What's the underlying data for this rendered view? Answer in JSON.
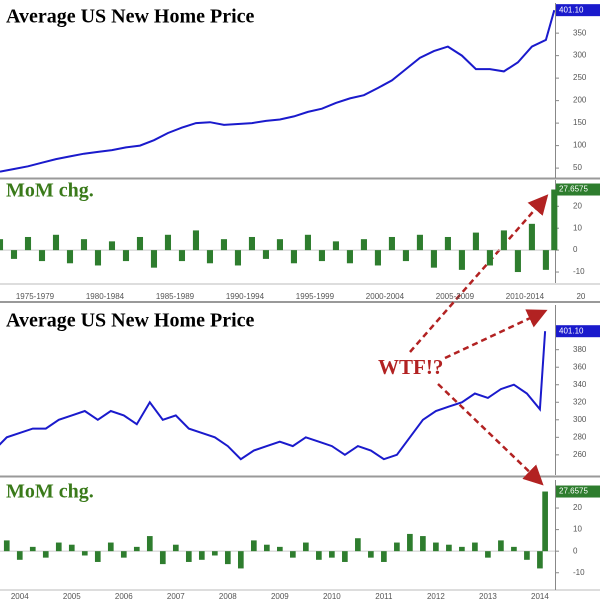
{
  "chart_data": [
    {
      "type": "line",
      "title": "Average US New Home Price",
      "color": "#1a1acc",
      "x": [
        1975,
        1976,
        1977,
        1978,
        1979,
        1980,
        1981,
        1982,
        1983,
        1984,
        1985,
        1986,
        1987,
        1988,
        1989,
        1990,
        1991,
        1992,
        1993,
        1994,
        1995,
        1996,
        1997,
        1998,
        1999,
        2000,
        2001,
        2002,
        2003,
        2004,
        2005,
        2006,
        2007,
        2008,
        2009,
        2010,
        2011,
        2012,
        2013,
        2014,
        2014.6
      ],
      "values": [
        42,
        48,
        54,
        62,
        70,
        76,
        82,
        86,
        90,
        96,
        100,
        112,
        128,
        140,
        150,
        152,
        146,
        148,
        150,
        155,
        158,
        165,
        175,
        182,
        195,
        205,
        212,
        228,
        245,
        270,
        295,
        310,
        320,
        300,
        270,
        270,
        265,
        285,
        320,
        335,
        401.1
      ],
      "last_value_label": "401.10",
      "xlim": [
        1975,
        2014.65
      ],
      "ylim": [
        28,
        417
      ],
      "yticks": [
        50,
        100,
        150,
        200,
        250,
        300,
        350
      ]
    },
    {
      "type": "bar",
      "title": "MoM chg.",
      "color": "#2e7d2e",
      "x": [
        1975,
        1976,
        1977,
        1978,
        1979,
        1980,
        1981,
        1982,
        1983,
        1984,
        1985,
        1986,
        1987,
        1988,
        1989,
        1990,
        1991,
        1992,
        1993,
        1994,
        1995,
        1996,
        1997,
        1998,
        1999,
        2000,
        2001,
        2002,
        2003,
        2004,
        2005,
        2006,
        2007,
        2008,
        2009,
        2010,
        2011,
        2012,
        2013,
        2014,
        2014.6
      ],
      "values": [
        5,
        -4,
        6,
        -5,
        7,
        -6,
        5,
        -7,
        4,
        -5,
        6,
        -8,
        7,
        -5,
        9,
        -6,
        5,
        -7,
        6,
        -4,
        5,
        -6,
        7,
        -5,
        4,
        -6,
        5,
        -7,
        6,
        -5,
        7,
        -8,
        6,
        -9,
        8,
        -7,
        9,
        -10,
        12,
        -9,
        27.6575
      ],
      "last_value_label": "27.6575",
      "xlim": [
        1975,
        2014.65
      ],
      "ylim": [
        -15,
        32
      ],
      "yticks": [
        -10,
        0,
        10,
        20
      ],
      "xticks": [
        {
          "value": 1977.5,
          "label": "1975-1979"
        },
        {
          "value": 1982.5,
          "label": "1980-1984"
        },
        {
          "value": 1987.5,
          "label": "1985-1989"
        },
        {
          "value": 1992.5,
          "label": "1990-1994"
        },
        {
          "value": 1997.5,
          "label": "1995-1999"
        },
        {
          "value": 2002.5,
          "label": "2000-2004"
        },
        {
          "value": 2007.5,
          "label": "2005-2009"
        },
        {
          "value": 2012.5,
          "label": "2010-2014"
        },
        {
          "value": 2016.5,
          "label": "20"
        }
      ]
    },
    {
      "type": "line",
      "title": "Average US New Home Price",
      "color": "#1a1acc",
      "annotation": "WTF!?",
      "x": [
        2004,
        2004.25,
        2004.5,
        2004.75,
        2005,
        2005.25,
        2005.5,
        2005.75,
        2006,
        2006.25,
        2006.5,
        2006.75,
        2007,
        2007.25,
        2007.5,
        2007.75,
        2008,
        2008.25,
        2008.5,
        2008.75,
        2009,
        2009.25,
        2009.5,
        2009.75,
        2010,
        2010.25,
        2010.5,
        2010.75,
        2011,
        2011.25,
        2011.5,
        2011.75,
        2012,
        2012.25,
        2012.5,
        2012.75,
        2013,
        2013.25,
        2013.5,
        2013.75,
        2014,
        2014.25,
        2014.5,
        2014.6
      ],
      "values": [
        265,
        280,
        285,
        290,
        290,
        300,
        305,
        310,
        300,
        310,
        305,
        295,
        320,
        300,
        305,
        290,
        285,
        280,
        270,
        255,
        265,
        270,
        275,
        270,
        280,
        275,
        270,
        260,
        270,
        265,
        255,
        260,
        280,
        300,
        310,
        315,
        320,
        330,
        325,
        335,
        340,
        330,
        312,
        401.1
      ],
      "last_value_label": "401.10",
      "xlim": [
        2004.12,
        2014.79
      ],
      "ylim": [
        237,
        431
      ],
      "yticks": [
        260,
        280,
        300,
        320,
        340,
        360,
        380
      ]
    },
    {
      "type": "bar",
      "title": "MoM chg.",
      "color": "#2e7d2e",
      "x": [
        2004,
        2004.25,
        2004.5,
        2004.75,
        2005,
        2005.25,
        2005.5,
        2005.75,
        2006,
        2006.25,
        2006.5,
        2006.75,
        2007,
        2007.25,
        2007.5,
        2007.75,
        2008,
        2008.25,
        2008.5,
        2008.75,
        2009,
        2009.25,
        2009.5,
        2009.75,
        2010,
        2010.25,
        2010.5,
        2010.75,
        2011,
        2011.25,
        2011.5,
        2011.75,
        2012,
        2012.25,
        2012.5,
        2012.75,
        2013,
        2013.25,
        2013.5,
        2013.75,
        2014,
        2014.25,
        2014.5,
        2014.6
      ],
      "values": [
        3,
        5,
        -4,
        2,
        -3,
        4,
        3,
        -2,
        -5,
        4,
        -3,
        2,
        7,
        -6,
        3,
        -5,
        -4,
        -2,
        -6,
        -8,
        5,
        3,
        2,
        -3,
        4,
        -4,
        -3,
        -5,
        6,
        -3,
        -5,
        4,
        8,
        7,
        4,
        3,
        2,
        4,
        -3,
        5,
        2,
        -4,
        -8,
        27.6575
      ],
      "last_value_label": "27.6575",
      "xlim": [
        2004.12,
        2014.79
      ],
      "ylim": [
        -18,
        33
      ],
      "yticks": [
        -10,
        0,
        10,
        20
      ],
      "xticks": [
        {
          "value": 2004.5,
          "label": "2004"
        },
        {
          "value": 2005.5,
          "label": "2005"
        },
        {
          "value": 2006.5,
          "label": "2006"
        },
        {
          "value": 2007.5,
          "label": "2007"
        },
        {
          "value": 2008.5,
          "label": "2008"
        },
        {
          "value": 2009.5,
          "label": "2009"
        },
        {
          "value": 2010.5,
          "label": "2010"
        },
        {
          "value": 2011.5,
          "label": "2011"
        },
        {
          "value": 2012.5,
          "label": "2012"
        },
        {
          "value": 2013.5,
          "label": "2013"
        },
        {
          "value": 2014.5,
          "label": "2014"
        }
      ]
    }
  ]
}
